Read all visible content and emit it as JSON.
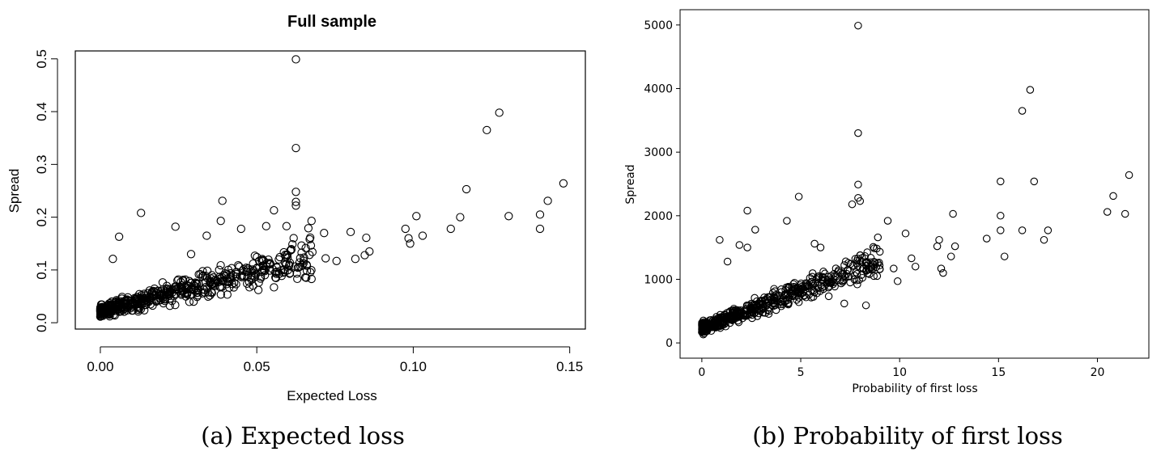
{
  "figure": {
    "caption_a": "(a) Expected loss",
    "caption_b": "(b) Probability of first loss"
  },
  "chart_data": [
    {
      "type": "scatter",
      "id": "expected-loss",
      "title": "Full sample",
      "xlabel": "Expected Loss",
      "ylabel": "Spread",
      "xlim": [
        -0.008,
        0.155
      ],
      "ylim": [
        -0.012,
        0.515
      ],
      "xticks": [
        0.0,
        0.05,
        0.1,
        0.15
      ],
      "xtick_labels": [
        "0.00",
        "0.05",
        "0.10",
        "0.15"
      ],
      "yticks": [
        0.0,
        0.1,
        0.2,
        0.3,
        0.4,
        0.5
      ],
      "ytick_labels": [
        "0.0",
        "0.1",
        "0.2",
        "0.3",
        "0.4",
        "0.5"
      ],
      "highlight_points": [
        [
          0.0625,
          0.499
        ],
        [
          0.0625,
          0.331
        ],
        [
          0.1275,
          0.398
        ],
        [
          0.1235,
          0.365
        ],
        [
          0.0625,
          0.248
        ],
        [
          0.148,
          0.264
        ],
        [
          0.117,
          0.253
        ],
        [
          0.143,
          0.231
        ],
        [
          0.0625,
          0.229
        ],
        [
          0.0625,
          0.222
        ],
        [
          0.039,
          0.231
        ],
        [
          0.013,
          0.208
        ],
        [
          0.101,
          0.202
        ],
        [
          0.115,
          0.2
        ],
        [
          0.1305,
          0.202
        ],
        [
          0.1405,
          0.205
        ],
        [
          0.1405,
          0.178
        ],
        [
          0.112,
          0.178
        ],
        [
          0.103,
          0.165
        ],
        [
          0.0975,
          0.178
        ],
        [
          0.099,
          0.15
        ],
        [
          0.0985,
          0.16
        ],
        [
          0.0555,
          0.213
        ],
        [
          0.0595,
          0.183
        ],
        [
          0.0665,
          0.179
        ],
        [
          0.0675,
          0.193
        ],
        [
          0.0715,
          0.17
        ],
        [
          0.08,
          0.172
        ],
        [
          0.085,
          0.161
        ],
        [
          0.086,
          0.135
        ],
        [
          0.0845,
          0.128
        ],
        [
          0.0815,
          0.121
        ],
        [
          0.0755,
          0.117
        ],
        [
          0.072,
          0.122
        ],
        [
          0.0655,
          0.086
        ],
        [
          0.0675,
          0.083
        ],
        [
          0.0505,
          0.062
        ],
        [
          0.0555,
          0.067
        ],
        [
          0.0605,
          0.093
        ],
        [
          0.047,
          0.097
        ],
        [
          0.006,
          0.163
        ],
        [
          0.004,
          0.121
        ],
        [
          0.024,
          0.182
        ],
        [
          0.034,
          0.165
        ],
        [
          0.0385,
          0.193
        ],
        [
          0.045,
          0.178
        ],
        [
          0.053,
          0.183
        ],
        [
          0.029,
          0.13
        ]
      ],
      "cluster": {
        "n": 560,
        "seed": 7,
        "x_max": 0.068,
        "y_intercept": 0.022,
        "y_slope": 1.55,
        "y_noise": 0.038
      }
    },
    {
      "type": "scatter",
      "id": "probability-first-loss",
      "title": "",
      "xlabel": "Probability of first loss",
      "ylabel": "Spread",
      "xlim": [
        -1.1,
        22.6
      ],
      "ylim": [
        -240,
        5240
      ],
      "xticks": [
        0,
        5,
        10,
        15,
        20
      ],
      "xtick_labels": [
        "0",
        "5",
        "10",
        "15",
        "20"
      ],
      "yticks": [
        0,
        1000,
        2000,
        3000,
        4000,
        5000
      ],
      "ytick_labels": [
        "0",
        "1000",
        "2000",
        "3000",
        "4000",
        "5000"
      ],
      "highlight_points": [
        [
          7.9,
          4990
        ],
        [
          16.6,
          3980
        ],
        [
          16.2,
          3650
        ],
        [
          7.9,
          3300
        ],
        [
          21.6,
          2640
        ],
        [
          15.1,
          2540
        ],
        [
          16.8,
          2540
        ],
        [
          7.9,
          2490
        ],
        [
          20.8,
          2310
        ],
        [
          4.9,
          2300
        ],
        [
          7.9,
          2280
        ],
        [
          8.0,
          2230
        ],
        [
          7.6,
          2180
        ],
        [
          2.3,
          2080
        ],
        [
          20.5,
          2060
        ],
        [
          21.4,
          2030
        ],
        [
          12.7,
          2030
        ],
        [
          15.1,
          2000
        ],
        [
          9.4,
          1920
        ],
        [
          4.3,
          1920
        ],
        [
          15.1,
          1770
        ],
        [
          16.2,
          1770
        ],
        [
          17.5,
          1770
        ],
        [
          17.3,
          1620
        ],
        [
          14.4,
          1640
        ],
        [
          12.0,
          1620
        ],
        [
          10.3,
          1720
        ],
        [
          11.9,
          1520
        ],
        [
          15.3,
          1360
        ],
        [
          12.8,
          1520
        ],
        [
          12.6,
          1360
        ],
        [
          12.1,
          1170
        ],
        [
          12.2,
          1100
        ],
        [
          10.6,
          1330
        ],
        [
          10.8,
          1200
        ],
        [
          9.7,
          1170
        ],
        [
          9.9,
          970
        ],
        [
          8.3,
          590
        ],
        [
          7.5,
          950
        ],
        [
          7.2,
          620
        ],
        [
          0.9,
          1620
        ],
        [
          1.3,
          1280
        ],
        [
          1.9,
          1540
        ],
        [
          2.3,
          1500
        ],
        [
          2.7,
          1780
        ],
        [
          5.7,
          1560
        ],
        [
          6.0,
          1500
        ],
        [
          8.9,
          1660
        ]
      ],
      "cluster": {
        "n": 560,
        "seed": 11,
        "x_max": 9.0,
        "y_intercept": 230,
        "y_slope": 118,
        "y_noise": 260
      }
    }
  ]
}
